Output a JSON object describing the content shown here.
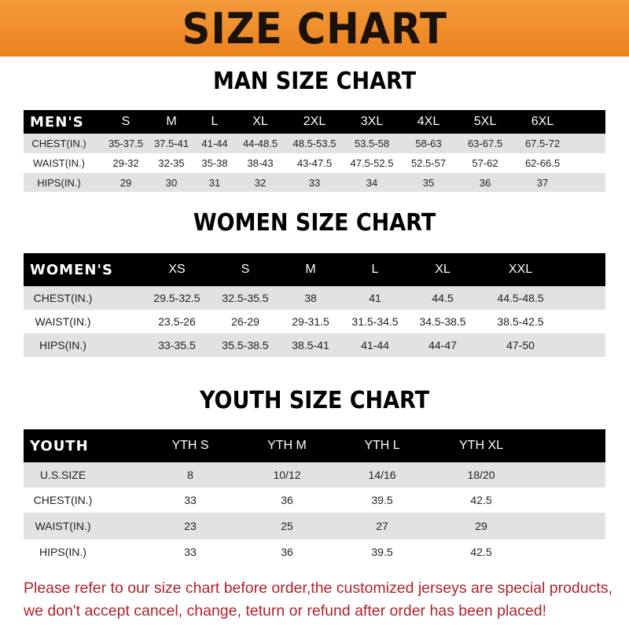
{
  "title": "SIZE CHART",
  "colors": {
    "banner": "#ee8a28",
    "header_row": "#000000",
    "stripe": "#e2e2e2",
    "notice": "#b3202a"
  },
  "men": {
    "title": "MAN SIZE CHART",
    "header": [
      "MEN'S",
      "S",
      "M",
      "L",
      "XL",
      "2XL",
      "3XL",
      "4XL",
      "5XL",
      "6XL"
    ],
    "rows": [
      [
        "CHEST(IN.)",
        "35-37.5",
        "37.5-41",
        "41-44",
        "44-48.5",
        "48.5-53.5",
        "53.5-58",
        "58-63",
        "63-67.5",
        "67.5-72"
      ],
      [
        "WAIST(IN.)",
        "29-32",
        "32-35",
        "35-38",
        "38-43",
        "43-47.5",
        "47.5-52.5",
        "52.5-57",
        "57-62",
        "62-66.5"
      ],
      [
        "HIPS(IN.)",
        "29",
        "30",
        "31",
        "32",
        "33",
        "34",
        "35",
        "36",
        "37"
      ]
    ]
  },
  "women": {
    "title": "WOMEN SIZE CHART",
    "header": [
      "WOMEN'S",
      "XS",
      "S",
      "M",
      "L",
      "XL",
      "XXL"
    ],
    "rows": [
      [
        "CHEST(IN.)",
        "29.5-32.5",
        "32.5-35.5",
        "38",
        "41",
        "44.5",
        "44.5-48.5"
      ],
      [
        "WAIST(IN.)",
        "23.5-26",
        "26-29",
        "29-31.5",
        "31.5-34.5",
        "34.5-38.5",
        "38.5-42.5"
      ],
      [
        "HIPS(IN.)",
        "33-35.5",
        "35.5-38.5",
        "38.5-41",
        "41-44",
        "44-47",
        "47-50"
      ]
    ]
  },
  "youth": {
    "title": "YOUTH SIZE CHART",
    "header": [
      "YOUTH",
      "YTH S",
      "YTH M",
      "YTH L",
      "YTH XL"
    ],
    "rows": [
      [
        "U.S.SIZE",
        "8",
        "10/12",
        "14/16",
        "18/20"
      ],
      [
        "CHEST(IN.)",
        "33",
        "36",
        "39.5",
        "42.5"
      ],
      [
        "WAIST(IN.)",
        "23",
        "25",
        "27",
        "29"
      ],
      [
        "HIPS(IN.)",
        "33",
        "36",
        "39.5",
        "42.5"
      ]
    ]
  },
  "notice": {
    "line1": "Please refer to our size chart before order,the customized jerseys are special products,",
    "line2": "we don't accept cancel, change, teturn or refund after order has been placed!"
  }
}
